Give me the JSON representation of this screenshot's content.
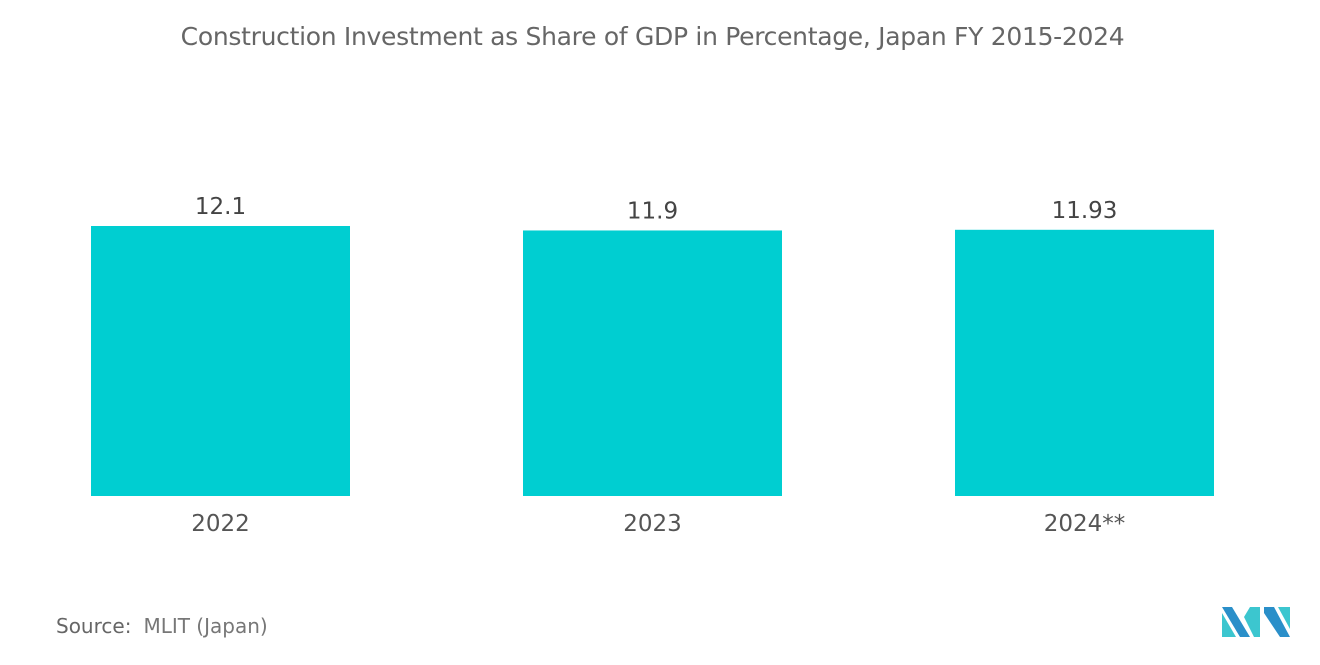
{
  "chart_data": {
    "type": "bar",
    "title": "Construction Investment as Share of GDP in Percentage,  Japan FY 2015-2024",
    "categories": [
      "2022",
      "2023",
      "2024**"
    ],
    "values": [
      12.1,
      11.9,
      11.93
    ],
    "value_labels": [
      "12.1",
      "11.9",
      "11.93"
    ],
    "xlabel": "",
    "ylabel": "",
    "ylim": [
      0,
      12.1
    ],
    "grid": false,
    "legend": "none",
    "bar_color": "#00CED1"
  },
  "source": {
    "label": "Source:",
    "text": "MLIT (Japan)"
  },
  "logo": {
    "name": "mordor-intelligence-logo",
    "colors": [
      "#2A8FC9",
      "#3CC6CF"
    ]
  }
}
